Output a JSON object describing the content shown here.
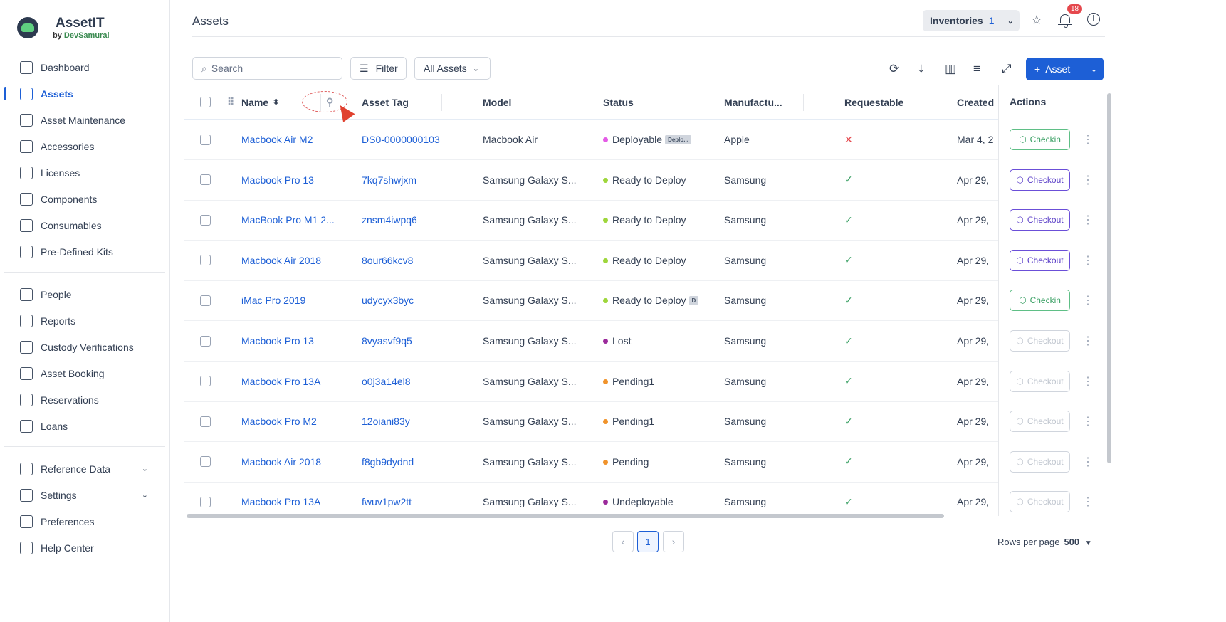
{
  "app": {
    "title": "AssetIT",
    "by": "by",
    "brand": "DevSamurai"
  },
  "sidebar": {
    "items": [
      {
        "label": "Dashboard",
        "icon": "dashboard-icon"
      },
      {
        "label": "Assets",
        "icon": "laptop-icon",
        "active": true
      },
      {
        "label": "Asset Maintenance",
        "icon": "wrench-icon"
      },
      {
        "label": "Accessories",
        "icon": "mouse-icon"
      },
      {
        "label": "Licenses",
        "icon": "key-icon"
      },
      {
        "label": "Components",
        "icon": "puzzle-icon"
      },
      {
        "label": "Consumables",
        "icon": "database-icon"
      },
      {
        "label": "Pre-Defined Kits",
        "icon": "kit-icon"
      }
    ],
    "items2": [
      {
        "label": "People",
        "icon": "user-icon"
      },
      {
        "label": "Reports",
        "icon": "report-icon"
      },
      {
        "label": "Custody Verifications",
        "icon": "verify-icon"
      },
      {
        "label": "Asset Booking",
        "icon": "calendar-icon"
      },
      {
        "label": "Reservations",
        "icon": "reservation-icon"
      },
      {
        "label": "Loans",
        "icon": "loan-icon"
      }
    ],
    "items3": [
      {
        "label": "Reference Data",
        "icon": "reference-icon",
        "expandable": true
      },
      {
        "label": "Settings",
        "icon": "gear-icon",
        "expandable": true
      },
      {
        "label": "Preferences",
        "icon": "sliders-icon"
      },
      {
        "label": "Help Center",
        "icon": "help-icon"
      }
    ]
  },
  "header": {
    "title": "Assets",
    "inventories_label": "Inventories",
    "inventories_count": "1",
    "notification_count": "18"
  },
  "toolbar": {
    "search_placeholder": "Search",
    "filter_label": "Filter",
    "view_label": "All Assets",
    "add_label": "Asset"
  },
  "table": {
    "columns": [
      "Name",
      "Asset Tag",
      "Model",
      "Status",
      "Manufactu...",
      "Requestable",
      "Created",
      "Actions"
    ],
    "rows": [
      {
        "name": "Macbook Air M2",
        "tag": "DS0-0000000103",
        "model": "Macbook Air",
        "status": "Deployable",
        "status_color": "#e45ce6",
        "status_tag": "Deplo...",
        "manufacturer": "Apple",
        "requestable": false,
        "created": "Mar 4, 2",
        "action": "Checkin",
        "action_type": "in"
      },
      {
        "name": "Macbook Pro 13",
        "tag": "7kq7shwjxm",
        "model": "Samsung Galaxy S...",
        "status": "Ready to Deploy",
        "status_color": "#9ed63b",
        "status_tag": "",
        "manufacturer": "Samsung",
        "requestable": true,
        "created": "Apr 29,",
        "action": "Checkout",
        "action_type": "out"
      },
      {
        "name": "MacBook Pro M1 2...",
        "tag": "znsm4iwpq6",
        "model": "Samsung Galaxy S...",
        "status": "Ready to Deploy",
        "status_color": "#9ed63b",
        "status_tag": "",
        "manufacturer": "Samsung",
        "requestable": true,
        "created": "Apr 29,",
        "action": "Checkout",
        "action_type": "out"
      },
      {
        "name": "Macbook Air 2018",
        "tag": "8our66kcv8",
        "model": "Samsung Galaxy S...",
        "status": "Ready to Deploy",
        "status_color": "#9ed63b",
        "status_tag": "",
        "manufacturer": "Samsung",
        "requestable": true,
        "created": "Apr 29,",
        "action": "Checkout",
        "action_type": "out"
      },
      {
        "name": "iMac Pro 2019",
        "tag": "udycyx3byc",
        "model": "Samsung Galaxy S...",
        "status": "Ready to Deploy",
        "status_color": "#9ed63b",
        "status_tag": "D",
        "manufacturer": "Samsung",
        "requestable": true,
        "created": "Apr 29,",
        "action": "Checkin",
        "action_type": "in"
      },
      {
        "name": "Macbook Pro 13",
        "tag": "8vyasvf9q5",
        "model": "Samsung Galaxy S...",
        "status": "Lost",
        "status_color": "#9b2a9b",
        "status_tag": "",
        "manufacturer": "Samsung",
        "requestable": true,
        "created": "Apr 29,",
        "action": "Checkout",
        "action_type": "dis"
      },
      {
        "name": "Macbook Pro 13A",
        "tag": "o0j3a14el8",
        "model": "Samsung Galaxy S...",
        "status": "Pending1",
        "status_color": "#f0932b",
        "status_tag": "",
        "manufacturer": "Samsung",
        "requestable": true,
        "created": "Apr 29,",
        "action": "Checkout",
        "action_type": "dis"
      },
      {
        "name": "Macbook Pro M2",
        "tag": "12oiani83y",
        "model": "Samsung Galaxy S...",
        "status": "Pending1",
        "status_color": "#f0932b",
        "status_tag": "",
        "manufacturer": "Samsung",
        "requestable": true,
        "created": "Apr 29,",
        "action": "Checkout",
        "action_type": "dis"
      },
      {
        "name": "Macbook Air 2018",
        "tag": "f8gb9dydnd",
        "model": "Samsung Galaxy S...",
        "status": "Pending",
        "status_color": "#f0932b",
        "status_tag": "",
        "manufacturer": "Samsung",
        "requestable": true,
        "created": "Apr 29,",
        "action": "Checkout",
        "action_type": "dis"
      },
      {
        "name": "Macbook Pro 13A",
        "tag": "fwuv1pw2tt",
        "model": "Samsung Galaxy S...",
        "status": "Undeployable",
        "status_color": "#9b2a9b",
        "status_tag": "",
        "manufacturer": "Samsung",
        "requestable": true,
        "created": "Apr 29,",
        "action": "Checkout",
        "action_type": "dis"
      }
    ]
  },
  "pagination": {
    "current_page": "1",
    "rows_per_page_label": "Rows per page",
    "rows_per_page": "500"
  },
  "colors": {
    "accent": "#1d5fd6",
    "checkin": "#3aa064",
    "checkout": "#5b3fc8",
    "false_mark": "#e5484d",
    "true_mark": "#3aa064"
  }
}
